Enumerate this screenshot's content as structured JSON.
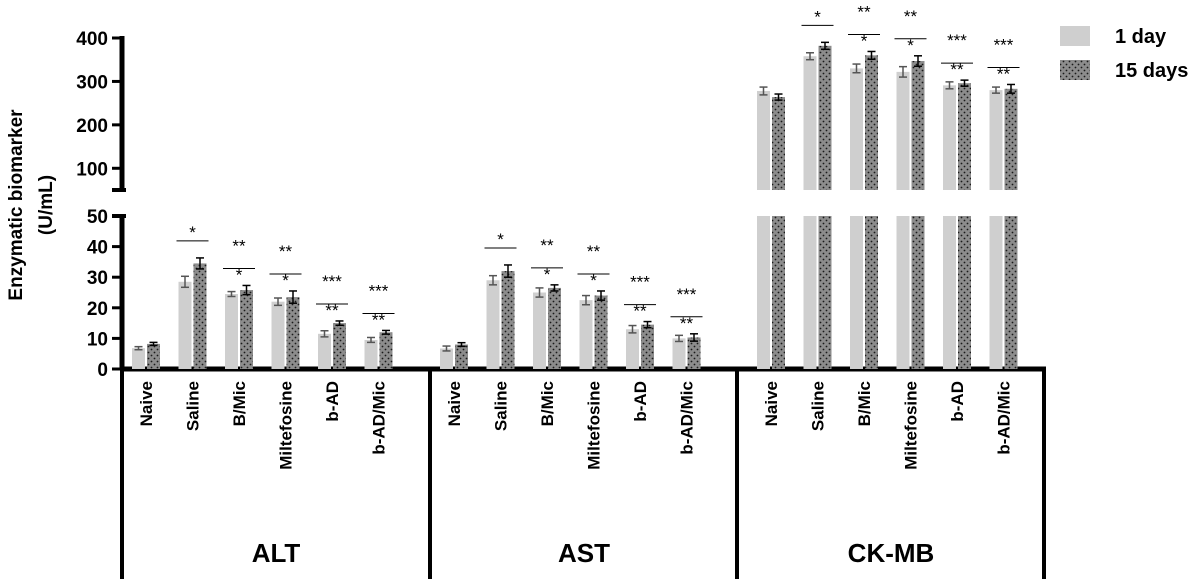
{
  "chart_data": {
    "type": "bar",
    "ylabel_line1": "Enzymatic biomarker",
    "ylabel_line2": "(U/mL)",
    "y_axis": {
      "broken": true,
      "lower_range": [
        0,
        50
      ],
      "upper_range": [
        50,
        400
      ],
      "lower_ticks": [
        "0",
        "10",
        "20",
        "30",
        "40",
        "50"
      ],
      "upper_ticks": [
        "100",
        "200",
        "300",
        "400"
      ]
    },
    "legend": {
      "placement": "top-right",
      "items": [
        {
          "label": "1 day",
          "color": "#cfcfcf",
          "pattern": "solid"
        },
        {
          "label": "15 days",
          "color": "#8c8c8c",
          "pattern": "dotted"
        }
      ]
    },
    "groups": [
      {
        "name": "ALT",
        "categories": [
          "Naive",
          "Saline",
          "B/Mic",
          "Miltefosine",
          "b-AD",
          "b-AD/Mic"
        ],
        "series": [
          {
            "name": "1 day",
            "values": [
              6.8,
              28.5,
              24.5,
              22,
              11.5,
              9.5
            ],
            "errors": [
              0.5,
              1.8,
              0.8,
              1.2,
              1.0,
              0.8
            ]
          },
          {
            "name": "15 days",
            "values": [
              8.2,
              34.5,
              25.8,
              23.5,
              15,
              12
            ],
            "errors": [
              0.5,
              1.8,
              1.5,
              2.0,
              0.7,
              0.6
            ]
          }
        ],
        "significance": [
          [],
          [
            "*"
          ],
          [
            "**",
            "*"
          ],
          [
            "**",
            "*"
          ],
          [
            "***",
            "**"
          ],
          [
            "***",
            "**"
          ]
        ]
      },
      {
        "name": "AST",
        "categories": [
          "Naive",
          "Saline",
          "B/Mic",
          "Miltefosine",
          "b-AD",
          "b-AD/Mic"
        ],
        "series": [
          {
            "name": "1 day",
            "values": [
              6.7,
              29,
              25,
              22.5,
              13,
              10
            ],
            "errors": [
              0.8,
              1.5,
              1.5,
              1.5,
              1.2,
              1.0
            ]
          },
          {
            "name": "15 days",
            "values": [
              8,
              32,
              26.5,
              24,
              14.5,
              10.3
            ],
            "errors": [
              0.6,
              2.0,
              1.0,
              1.5,
              1.0,
              1.2
            ]
          }
        ],
        "significance": [
          [],
          [
            "*"
          ],
          [
            "**",
            "*"
          ],
          [
            "**",
            "*"
          ],
          [
            "***",
            "**"
          ],
          [
            "***",
            "**"
          ]
        ]
      },
      {
        "name": "CK-MB",
        "categories": [
          "Naive",
          "Saline",
          "B/Mic",
          "Miltefosine",
          "b-AD",
          "b-AD/Mic"
        ],
        "series": [
          {
            "name": "1 day",
            "values": [
              278,
              358,
              330,
              322,
              291,
              280
            ],
            "errors": [
              9,
              8,
              10,
              12,
              8,
              7
            ]
          },
          {
            "name": "15 days",
            "values": [
              264,
              382,
              360,
              347,
              296,
              283
            ],
            "errors": [
              7,
              8,
              9,
              12,
              7,
              10
            ]
          }
        ],
        "significance": [
          [],
          [
            "*"
          ],
          [
            "**",
            "*"
          ],
          [
            "**",
            "*"
          ],
          [
            "***",
            "**"
          ],
          [
            "***",
            "**"
          ]
        ]
      }
    ]
  }
}
